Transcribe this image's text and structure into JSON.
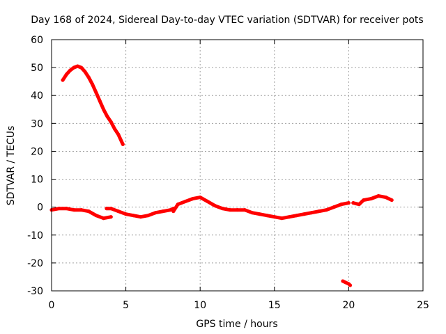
{
  "chart_data": {
    "type": "scatter",
    "title": "Day 168 of 2024, Sidereal Day-to-day VTEC variation (SDTVAR) for receiver pots",
    "xlabel": "GPS time / hours",
    "ylabel": "SDTVAR / TECUs",
    "xlim": [
      0,
      25
    ],
    "ylim": [
      -30,
      60
    ],
    "xticks": [
      0,
      5,
      10,
      15,
      20,
      25
    ],
    "yticks": [
      -30,
      -20,
      -10,
      0,
      10,
      20,
      30,
      40,
      50,
      60
    ],
    "grid": true,
    "series_color": "#ff0000",
    "series": [
      {
        "name": "arc-high",
        "x": [
          0.75,
          1.0,
          1.25,
          1.5,
          1.75,
          2.0,
          2.25,
          2.5,
          2.75,
          3.0,
          3.25,
          3.5,
          3.75,
          4.0,
          4.25,
          4.5,
          4.8
        ],
        "y": [
          45.5,
          47.5,
          49.0,
          50.0,
          50.5,
          50.0,
          48.5,
          46.5,
          44.0,
          41.0,
          38.0,
          35.0,
          32.5,
          30.5,
          28.0,
          26.0,
          22.5
        ]
      },
      {
        "name": "baseline-a",
        "x": [
          0.0,
          0.5,
          1.0,
          1.5,
          2.0,
          2.5,
          3.0,
          3.5,
          4.0
        ],
        "y": [
          -1.0,
          -0.5,
          -0.5,
          -1.0,
          -1.0,
          -1.5,
          -3.0,
          -4.0,
          -3.5
        ]
      },
      {
        "name": "baseline-b",
        "x": [
          3.7,
          4.0,
          4.5,
          5.0,
          5.5,
          6.0,
          6.5,
          7.0,
          7.5,
          8.0,
          8.2
        ],
        "y": [
          -0.5,
          -0.5,
          -1.5,
          -2.5,
          -3.0,
          -3.5,
          -3.0,
          -2.0,
          -1.5,
          -1.0,
          -0.5
        ]
      },
      {
        "name": "baseline-c",
        "x": [
          8.2,
          8.5,
          9.0,
          9.5,
          10.0,
          10.5,
          11.0,
          11.5,
          12.0,
          12.5,
          13.0,
          13.5,
          14.0,
          14.5,
          15.0,
          15.5,
          16.0,
          16.5,
          17.0,
          17.5,
          18.0,
          18.5,
          19.0,
          19.5,
          20.0
        ],
        "y": [
          -1.5,
          1.0,
          2.0,
          3.0,
          3.5,
          2.0,
          0.5,
          -0.5,
          -1.0,
          -1.0,
          -1.0,
          -2.0,
          -2.5,
          -3.0,
          -3.5,
          -4.0,
          -3.5,
          -3.0,
          -2.5,
          -2.0,
          -1.5,
          -1.0,
          0.0,
          1.0,
          1.5
        ]
      },
      {
        "name": "baseline-d",
        "x": [
          20.3,
          20.7,
          21.0,
          21.5,
          22.0,
          22.5,
          22.9
        ],
        "y": [
          1.5,
          1.0,
          2.5,
          3.0,
          4.0,
          3.5,
          2.5
        ]
      },
      {
        "name": "arc-low",
        "x": [
          19.6,
          19.8,
          20.0,
          20.1
        ],
        "y": [
          -26.5,
          -27.0,
          -27.5,
          -28.0
        ]
      }
    ]
  }
}
